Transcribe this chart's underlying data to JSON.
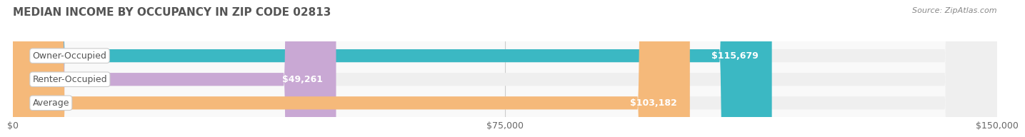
{
  "title": "MEDIAN INCOME BY OCCUPANCY IN ZIP CODE 02813",
  "source": "Source: ZipAtlas.com",
  "categories": [
    "Owner-Occupied",
    "Renter-Occupied",
    "Average"
  ],
  "values": [
    115679,
    49261,
    103182
  ],
  "bar_colors": [
    "#3bb8c3",
    "#c9a8d4",
    "#f5b97a"
  ],
  "bar_bg_color": "#efefef",
  "label_bg_color": "#f5f5f5",
  "label_border_color": "#cccccc",
  "bar_labels": [
    "$115,679",
    "$49,261",
    "$103,182"
  ],
  "title_fontsize": 11,
  "source_fontsize": 8,
  "tick_fontsize": 9,
  "label_fontsize": 9,
  "xlim": [
    0,
    150000
  ],
  "xticks": [
    0,
    75000,
    150000
  ],
  "xticklabels": [
    "$0",
    "$75,000",
    "$150,000"
  ],
  "fig_bg_color": "#ffffff",
  "axes_bg_color": "#f9f9f9"
}
